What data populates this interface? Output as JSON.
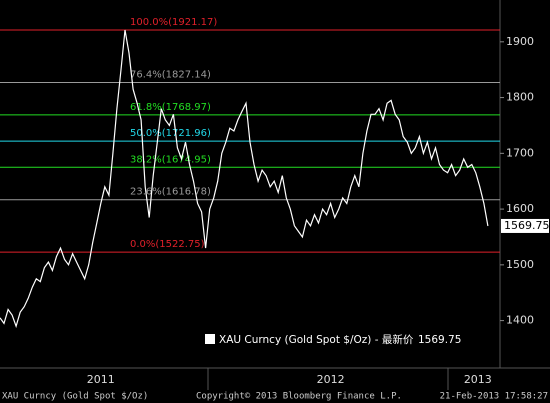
{
  "chart_data": {
    "type": "line",
    "series": [
      {
        "name": "XAU Curncy (Gold Spot $/Oz) - 最新价",
        "color": "#ffffff",
        "values": [
          1405,
          1395,
          1420,
          1410,
          1390,
          1415,
          1425,
          1440,
          1460,
          1475,
          1470,
          1495,
          1505,
          1490,
          1515,
          1530,
          1510,
          1500,
          1520,
          1505,
          1490,
          1475,
          1500,
          1540,
          1575,
          1610,
          1640,
          1625,
          1700,
          1780,
          1850,
          1921.17,
          1880,
          1815,
          1790,
          1760,
          1640,
          1585,
          1660,
          1720,
          1780,
          1760,
          1750,
          1770,
          1710,
          1690,
          1720,
          1680,
          1650,
          1610,
          1595,
          1530,
          1600,
          1620,
          1650,
          1700,
          1720,
          1745,
          1740,
          1760,
          1775,
          1790,
          1720,
          1680,
          1650,
          1670,
          1660,
          1640,
          1650,
          1630,
          1660,
          1620,
          1600,
          1570,
          1560,
          1550,
          1580,
          1570,
          1590,
          1575,
          1600,
          1590,
          1610,
          1585,
          1600,
          1620,
          1610,
          1640,
          1660,
          1640,
          1700,
          1740,
          1770,
          1770,
          1780,
          1760,
          1790,
          1795,
          1770,
          1760,
          1730,
          1720,
          1700,
          1710,
          1730,
          1700,
          1720,
          1690,
          1710,
          1680,
          1670,
          1665,
          1680,
          1660,
          1670,
          1690,
          1675,
          1680,
          1665,
          1640,
          1610,
          1569.75
        ]
      }
    ],
    "xlim": [
      0,
      124
    ],
    "xticks": [
      {
        "value": 25,
        "label": "2011"
      },
      {
        "value": 82,
        "label": "2012"
      },
      {
        "value": 118.5,
        "label": "2013"
      }
    ],
    "ylim": [
      1315,
      1975
    ],
    "yticks": [
      1400,
      1500,
      1600,
      1700,
      1800,
      1900
    ],
    "levels": [
      {
        "label": "100.0%(1921.17)",
        "value": 1921.17,
        "color": "#e0202a"
      },
      {
        "label": "76.4%(1827.14)",
        "value": 1827.14,
        "color": "#9a9a9a"
      },
      {
        "label": "61.8%(1768.97)",
        "value": 1768.97,
        "color": "#22dd22"
      },
      {
        "label": "50.0%(1721.96)",
        "value": 1721.96,
        "color": "#22d8e8"
      },
      {
        "label": "38.2%(1674.95)",
        "value": 1674.95,
        "color": "#22dd22"
      },
      {
        "label": "23.6%(1616.78)",
        "value": 1616.78,
        "color": "#9a9a9a"
      },
      {
        "label": "0.0%(1522.75)",
        "value": 1522.75,
        "color": "#e0202a"
      }
    ]
  },
  "footer": {
    "ticker": "XAU Curncy (Gold Spot  $/Oz)",
    "copyright": "Copyright© 2013 Bloomberg Finance L.P.",
    "timestamp": "21-Feb-2013 17:58:27"
  }
}
